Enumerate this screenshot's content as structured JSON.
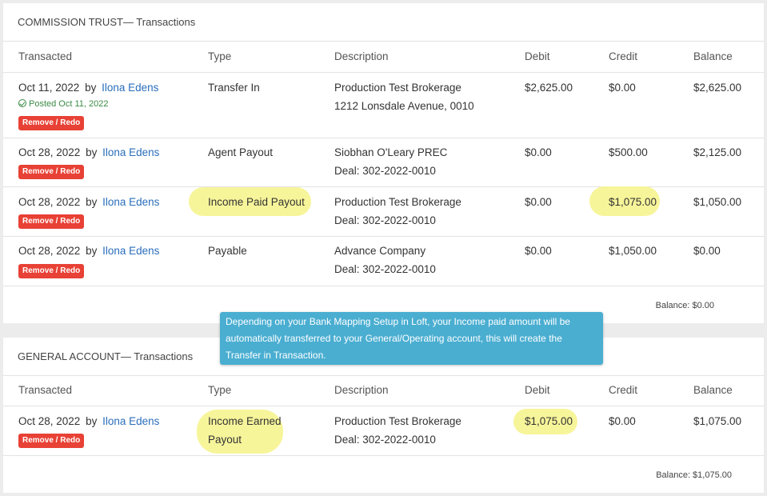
{
  "commission_trust": {
    "title": "COMMISSION TRUST— Transactions",
    "headers": {
      "transacted": "Transacted",
      "type": "Type",
      "description": "Description",
      "debit": "Debit",
      "credit": "Credit",
      "balance": "Balance"
    },
    "rows": [
      {
        "date": "Oct 11, 2022",
        "by": "by",
        "user": "Ilona Edens",
        "posted": "Posted Oct 11, 2022",
        "button": "Remove / Redo",
        "type": "Transfer In",
        "desc1": "Production Test Brokerage",
        "desc2": "1212 Lonsdale Avenue, 0010",
        "debit": "$2,625.00",
        "credit": "$0.00",
        "balance": "$2,625.00"
      },
      {
        "date": "Oct 28, 2022",
        "by": "by",
        "user": "Ilona Edens",
        "button": "Remove / Redo",
        "type": "Agent Payout",
        "desc1": "Siobhan O'Leary PREC",
        "desc2": "Deal: 302-2022-0010",
        "debit": "$0.00",
        "credit": "$500.00",
        "balance": "$2,125.00"
      },
      {
        "date": "Oct 28, 2022",
        "by": "by",
        "user": "Ilona Edens",
        "button": "Remove / Redo",
        "type": "Income Paid Payout",
        "desc1": "Production Test Brokerage",
        "desc2": "Deal: 302-2022-0010",
        "debit": "$0.00",
        "credit": "$1,075.00",
        "balance": "$1,050.00"
      },
      {
        "date": "Oct 28, 2022",
        "by": "by",
        "user": "Ilona Edens",
        "button": "Remove / Redo",
        "type": "Payable",
        "desc1": "Advance Company",
        "desc2": "Deal: 302-2022-0010",
        "debit": "$0.00",
        "credit": "$1,050.00",
        "balance": "$0.00"
      }
    ],
    "footer_balance": "Balance:  $0.00"
  },
  "general_account": {
    "title": "GENERAL ACCOUNT— Transactions",
    "headers": {
      "transacted": "Transacted",
      "type": "Type",
      "description": "Description",
      "debit": "Debit",
      "credit": "Credit",
      "balance": "Balance"
    },
    "rows": [
      {
        "date": "Oct 28, 2022",
        "by": "by",
        "user": "Ilona Edens",
        "button": "Remove / Redo",
        "type1": "Income Earned",
        "type2": "Payout",
        "desc1": "Production Test Brokerage",
        "desc2": "Deal: 302-2022-0010",
        "debit": "$1,075.00",
        "credit": "$0.00",
        "balance": "$1,075.00"
      }
    ],
    "footer_balance": "Balance:  $1,075.00"
  },
  "tooltip": {
    "line1": "Depending on your Bank Mapping Setup in Loft, your Income paid amount will be",
    "line2": "automatically transferred to your General/Operating account, this will create the",
    "line3": "Transfer in Transaction."
  },
  "colors": {
    "highlight": "#f7f59a",
    "danger_button": "#e84135",
    "link": "#2a6ebb",
    "posted": "#3a8a44",
    "tooltip": "#4aaed1"
  }
}
